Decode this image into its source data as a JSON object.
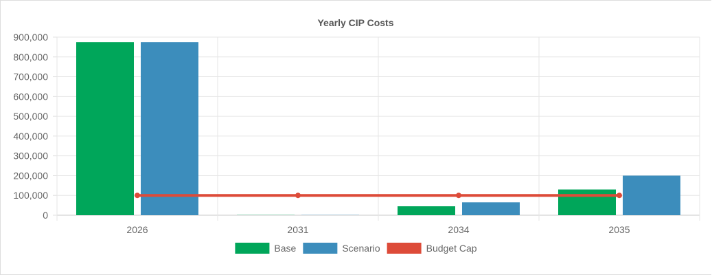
{
  "chart_data": {
    "type": "bar",
    "title": "Yearly CIP Costs",
    "categories": [
      "2026",
      "2031",
      "2034",
      "2035"
    ],
    "series": [
      {
        "name": "Base",
        "type": "bar",
        "color": "#00a65a",
        "values": [
          875000,
          1000,
          45000,
          130000
        ]
      },
      {
        "name": "Scenario",
        "type": "bar",
        "color": "#3c8dbc",
        "values": [
          875000,
          1000,
          65000,
          200000
        ]
      },
      {
        "name": "Budget Cap",
        "type": "line",
        "color": "#dd4b39",
        "values": [
          100000,
          100000,
          100000,
          100000
        ]
      }
    ],
    "ylim": [
      0,
      900000
    ],
    "yticks": [
      0,
      100000,
      200000,
      300000,
      400000,
      500000,
      600000,
      700000,
      800000,
      900000
    ],
    "ytick_labels": [
      "0",
      "100,000",
      "200,000",
      "300,000",
      "400,000",
      "500,000",
      "600,000",
      "700,000",
      "800,000",
      "900,000"
    ],
    "grid": true,
    "legend_position": "bottom"
  }
}
